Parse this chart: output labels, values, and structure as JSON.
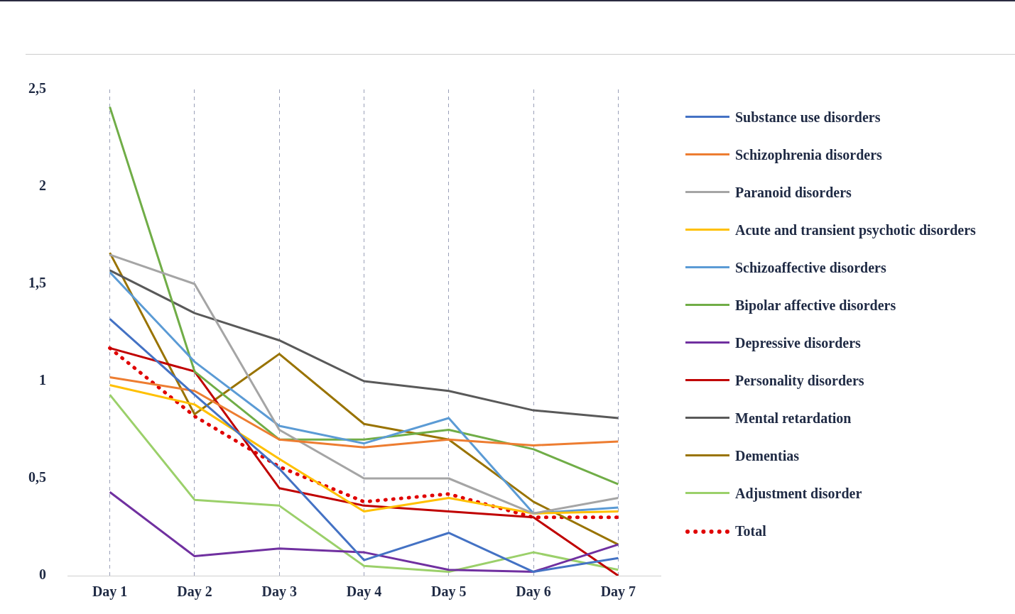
{
  "chart_data": {
    "type": "line",
    "categories": [
      "Day 1",
      "Day 2",
      "Day 3",
      "Day 4",
      "Day 5",
      "Day 6",
      "Day 7"
    ],
    "series": [
      {
        "name": "Substance use disorders",
        "color": "#4472c4",
        "values": [
          1.32,
          0.93,
          0.55,
          0.08,
          0.22,
          0.02,
          0.09
        ]
      },
      {
        "name": "Schizophrenia disorders",
        "color": "#ed7d31",
        "values": [
          1.02,
          0.95,
          0.7,
          0.66,
          0.7,
          0.67,
          0.69
        ]
      },
      {
        "name": "Paranoid disorders",
        "color": "#a5a5a5",
        "values": [
          1.65,
          1.5,
          0.75,
          0.5,
          0.5,
          0.32,
          0.4
        ]
      },
      {
        "name": "Acute and transient psychotic disorders",
        "color": "#ffc000",
        "values": [
          0.98,
          0.88,
          0.6,
          0.33,
          0.4,
          0.32,
          0.33
        ]
      },
      {
        "name": "Schizoaffective disorders",
        "color": "#5b9bd5",
        "values": [
          1.56,
          1.1,
          0.77,
          0.68,
          0.81,
          0.32,
          0.35
        ]
      },
      {
        "name": "Bipolar affective disorders",
        "color": "#70ad47",
        "values": [
          2.41,
          1.05,
          0.7,
          0.7,
          0.75,
          0.65,
          0.47
        ]
      },
      {
        "name": "Depressive disorders",
        "color": "#7030a0",
        "values": [
          0.43,
          0.1,
          0.14,
          0.12,
          0.03,
          0.02,
          0.16
        ]
      },
      {
        "name": "Personality disorders",
        "color": "#c00000",
        "values": [
          1.17,
          1.05,
          0.45,
          0.36,
          0.33,
          0.3,
          0.0
        ]
      },
      {
        "name": "Mental retardation",
        "color": "#595959",
        "values": [
          1.57,
          1.35,
          1.21,
          1.0,
          0.95,
          0.85,
          0.81
        ]
      },
      {
        "name": "Dementias",
        "color": "#997300",
        "values": [
          1.66,
          0.83,
          1.14,
          0.78,
          0.7,
          0.38,
          0.16
        ]
      },
      {
        "name": "Adjustment disorder",
        "color": "#9bd06a",
        "values": [
          0.93,
          0.39,
          0.36,
          0.05,
          0.02,
          0.12,
          0.03
        ]
      },
      {
        "name": "Total",
        "color": "#e00000",
        "line_style": "dotted",
        "values": [
          1.17,
          0.82,
          0.56,
          0.38,
          0.42,
          0.3,
          0.3
        ]
      }
    ],
    "ylim": [
      0,
      2.5
    ],
    "yticks": [
      {
        "value": 0,
        "label": "0"
      },
      {
        "value": 0.5,
        "label": "0,5"
      },
      {
        "value": 1,
        "label": "1"
      },
      {
        "value": 1.5,
        "label": "1,5"
      },
      {
        "value": 2,
        "label": "2"
      },
      {
        "value": 2.5,
        "label": "2,5"
      }
    ],
    "grid": "x",
    "legend": "right",
    "marker": "none",
    "line_style": "solid"
  }
}
